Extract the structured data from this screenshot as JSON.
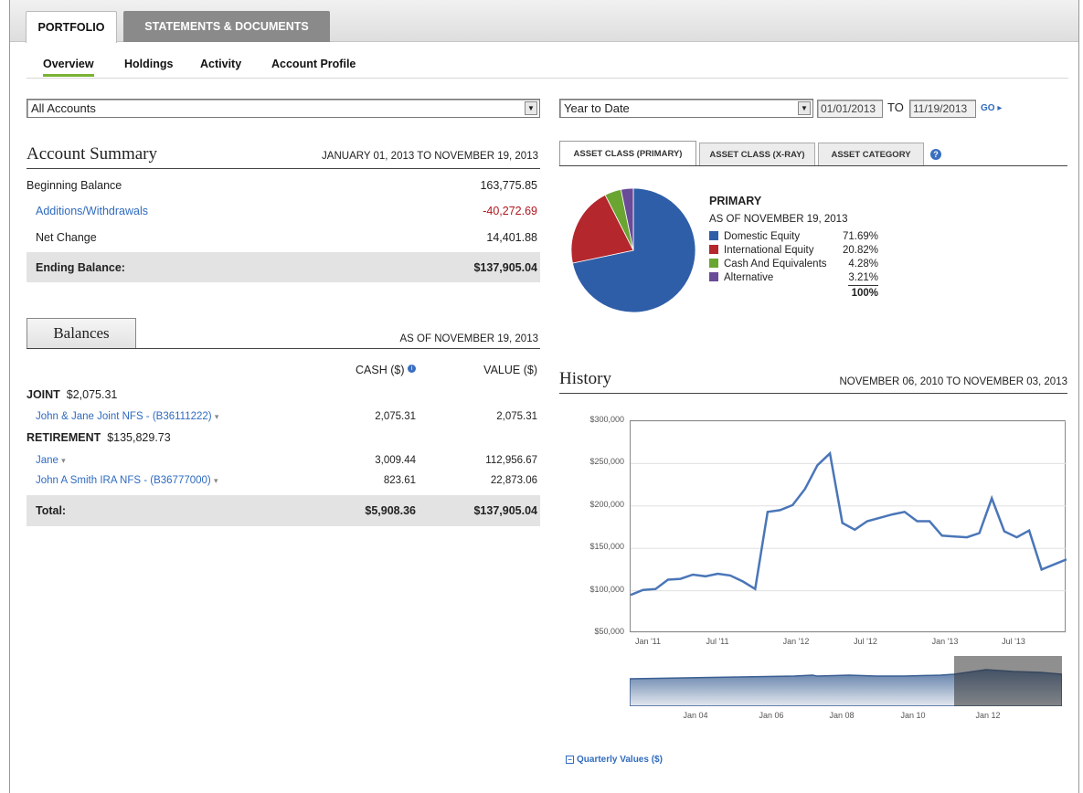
{
  "tabs": {
    "portfolio": "PORTFOLIO",
    "statements": "STATEMENTS & DOCUMENTS"
  },
  "subnav": {
    "overview": "Overview",
    "holdings": "Holdings",
    "activity": "Activity",
    "account_profile": "Account Profile"
  },
  "accounts_select": {
    "value": "All Accounts"
  },
  "period": {
    "value": "Year to Date",
    "from": "01/01/2013",
    "to_label": "TO",
    "to": "11/19/2013",
    "go": "GO ▸"
  },
  "account_summary": {
    "title": "Account Summary",
    "range": "JANUARY 01, 2013 TO NOVEMBER 19, 2013",
    "rows": [
      {
        "label": "Beginning Balance",
        "value": "163,775.85"
      },
      {
        "label": "Additions/Withdrawals",
        "value": "-40,272.69"
      },
      {
        "label": "Net Change",
        "value": "14,401.88"
      }
    ],
    "ending_label": "Ending Balance:",
    "ending_value": "$137,905.04"
  },
  "balances": {
    "title": "Balances",
    "as_of": "AS OF NOVEMBER 19, 2013",
    "col_cash": "CASH ($)",
    "col_value": "VALUE ($)",
    "joint_label": "JOINT",
    "joint_total": "$2,075.31",
    "joint_acct": {
      "name": "John & Jane Joint NFS - (B36111222)",
      "cash": "2,075.31",
      "value": "2,075.31"
    },
    "retirement_label": "RETIREMENT",
    "retirement_total": "$135,829.73",
    "ret_acct1": {
      "name": "Jane",
      "cash": "3,009.44",
      "value": "112,956.67"
    },
    "ret_acct2": {
      "name": "John A Smith IRA NFS - (B36777000)",
      "cash": "823.61",
      "value": "22,873.06"
    },
    "total_label": "Total:",
    "total_cash": "$5,908.36",
    "total_value": "$137,905.04"
  },
  "asset_tabs": {
    "primary": "ASSET CLASS (PRIMARY)",
    "xray": "ASSET CLASS (X-RAY)",
    "category": "ASSET CATEGORY"
  },
  "allocation": {
    "title": "PRIMARY",
    "as_of": "AS OF NOVEMBER 19, 2013",
    "total": "100%",
    "slices": [
      {
        "label": "Domestic Equity",
        "pct_text": "71.69%",
        "value": 71.69,
        "color": "#2f5ea8"
      },
      {
        "label": "International Equity",
        "pct_text": "20.82%",
        "value": 20.82,
        "color": "#b3272d"
      },
      {
        "label": "Cash And Equivalents",
        "pct_text": "4.28%",
        "value": 4.28,
        "color": "#6aa532"
      },
      {
        "label": "Alternative",
        "pct_text": "3.21%",
        "value": 3.21,
        "color": "#6a4b98"
      }
    ]
  },
  "history": {
    "title": "History",
    "range": "NOVEMBER 06, 2010 TO NOVEMBER 03, 2013",
    "quarterly_link": "Quarterly Values ($)"
  },
  "chart_data": {
    "type": "line",
    "ylim": [
      50000,
      300000
    ],
    "y_ticks": [
      "$300,000",
      "$250,000",
      "$200,000",
      "$150,000",
      "$100,000",
      "$50,000"
    ],
    "x_ticks": [
      "Jan '11",
      "Jul '11",
      "Jan '12",
      "Jul '12",
      "Jan '13",
      "Jul '13"
    ],
    "navigator_ticks": [
      "Jan 04",
      "Jan 06",
      "Jan 08",
      "Jan 10",
      "Jan 12"
    ],
    "series": [
      {
        "values": [
          95000,
          101000,
          102000,
          113000,
          114000,
          119000,
          117000,
          120000,
          118000,
          111000,
          102000,
          193000,
          195000,
          201000,
          220000,
          248000,
          262000,
          180000,
          172000,
          182000,
          186000,
          190000,
          193000,
          182000,
          182000,
          165000,
          164000,
          163000,
          168000,
          209000,
          170000,
          163000,
          171000,
          125000,
          131000,
          137000
        ]
      }
    ]
  }
}
